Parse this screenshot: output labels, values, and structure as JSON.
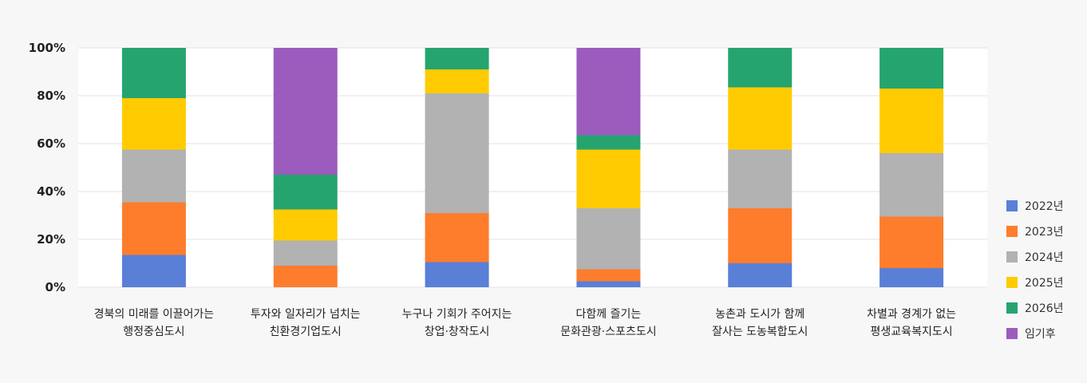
{
  "chart_data": {
    "type": "bar",
    "stacked": true,
    "percent": true,
    "categories": [
      [
        "경북의 미래를 이끌어가는",
        "행정중심도시"
      ],
      [
        "투자와 일자리가 넘치는",
        "친환경기업도시"
      ],
      [
        "누구나 기회가 주어지는",
        "창업·창작도시"
      ],
      [
        "다함께 즐기는",
        "문화관광·스포츠도시"
      ],
      [
        "농촌과 도시가 함께",
        "잘사는 도농복합도시"
      ],
      [
        "차별과 경계가 없는",
        "평생교육복지도시"
      ]
    ],
    "series": [
      {
        "name": "2022년",
        "color": "#5a7fd6",
        "values": [
          13.5,
          0,
          10.5,
          2.5,
          10,
          8
        ]
      },
      {
        "name": "2023년",
        "color": "#fd7d2d",
        "values": [
          22,
          9,
          20.5,
          5,
          23,
          21.5
        ]
      },
      {
        "name": "2024년",
        "color": "#b2b2b2",
        "values": [
          22,
          10.5,
          50,
          25.5,
          24.5,
          26.5
        ]
      },
      {
        "name": "2025년",
        "color": "#ffcb00",
        "values": [
          21.5,
          13,
          10,
          24.5,
          26,
          27
        ]
      },
      {
        "name": "2026년",
        "color": "#26a470",
        "values": [
          21,
          14.5,
          9,
          6,
          16.5,
          17
        ]
      },
      {
        "name": "임기후",
        "color": "#9b5cbe",
        "values": [
          0,
          53,
          0,
          36.5,
          0,
          0
        ]
      }
    ],
    "y_ticks": [
      "0%",
      "20%",
      "40%",
      "60%",
      "80%",
      "100%"
    ],
    "ylim": [
      0,
      100
    ],
    "grid": true,
    "legend_position": "right"
  }
}
